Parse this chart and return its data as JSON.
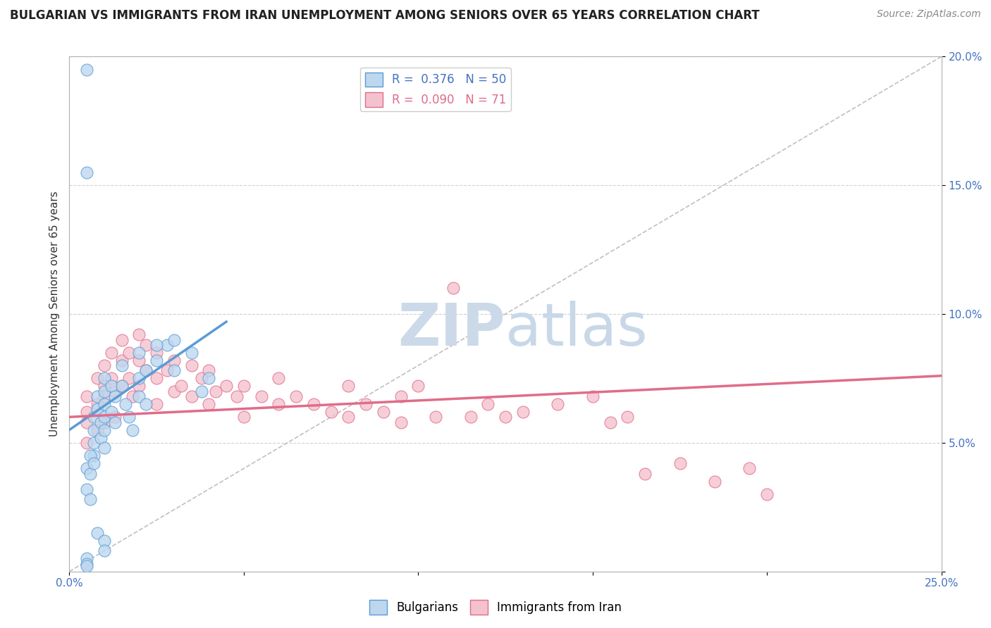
{
  "title": "BULGARIAN VS IMMIGRANTS FROM IRAN UNEMPLOYMENT AMONG SENIORS OVER 65 YEARS CORRELATION CHART",
  "source": "Source: ZipAtlas.com",
  "ylabel": "Unemployment Among Seniors over 65 years",
  "xlim": [
    0.0,
    0.25
  ],
  "ylim": [
    0.0,
    0.2
  ],
  "blue_R": 0.376,
  "blue_N": 50,
  "pink_R": 0.09,
  "pink_N": 71,
  "blue_scatter_x": [
    0.005,
    0.005,
    0.005,
    0.005,
    0.005,
    0.007,
    0.007,
    0.007,
    0.007,
    0.008,
    0.008,
    0.009,
    0.009,
    0.01,
    0.01,
    0.01,
    0.01,
    0.01,
    0.01,
    0.012,
    0.012,
    0.013,
    0.013,
    0.015,
    0.015,
    0.016,
    0.017,
    0.018,
    0.02,
    0.02,
    0.02,
    0.022,
    0.022,
    0.025,
    0.028,
    0.03,
    0.03,
    0.035,
    0.038,
    0.04,
    0.005,
    0.005,
    0.006,
    0.006,
    0.006,
    0.007,
    0.025,
    0.008,
    0.01,
    0.01
  ],
  "blue_scatter_y": [
    0.195,
    0.155,
    0.005,
    0.003,
    0.002,
    0.06,
    0.055,
    0.05,
    0.045,
    0.068,
    0.063,
    0.058,
    0.052,
    0.075,
    0.07,
    0.065,
    0.06,
    0.055,
    0.048,
    0.072,
    0.062,
    0.068,
    0.058,
    0.08,
    0.072,
    0.065,
    0.06,
    0.055,
    0.085,
    0.075,
    0.068,
    0.078,
    0.065,
    0.082,
    0.088,
    0.09,
    0.078,
    0.085,
    0.07,
    0.075,
    0.04,
    0.032,
    0.045,
    0.038,
    0.028,
    0.042,
    0.088,
    0.015,
    0.012,
    0.008
  ],
  "pink_scatter_x": [
    0.005,
    0.005,
    0.005,
    0.005,
    0.008,
    0.008,
    0.008,
    0.01,
    0.01,
    0.01,
    0.01,
    0.012,
    0.012,
    0.013,
    0.013,
    0.015,
    0.015,
    0.015,
    0.017,
    0.017,
    0.018,
    0.02,
    0.02,
    0.02,
    0.022,
    0.022,
    0.025,
    0.025,
    0.025,
    0.028,
    0.03,
    0.03,
    0.032,
    0.035,
    0.035,
    0.038,
    0.04,
    0.04,
    0.042,
    0.045,
    0.048,
    0.05,
    0.05,
    0.055,
    0.06,
    0.06,
    0.065,
    0.07,
    0.075,
    0.08,
    0.08,
    0.085,
    0.09,
    0.095,
    0.095,
    0.1,
    0.105,
    0.11,
    0.115,
    0.12,
    0.125,
    0.13,
    0.14,
    0.15,
    0.155,
    0.16,
    0.165,
    0.175,
    0.185,
    0.195,
    0.2
  ],
  "pink_scatter_y": [
    0.068,
    0.062,
    0.058,
    0.05,
    0.075,
    0.065,
    0.055,
    0.08,
    0.072,
    0.068,
    0.058,
    0.085,
    0.075,
    0.07,
    0.06,
    0.09,
    0.082,
    0.072,
    0.085,
    0.075,
    0.068,
    0.092,
    0.082,
    0.072,
    0.088,
    0.078,
    0.085,
    0.075,
    0.065,
    0.078,
    0.082,
    0.07,
    0.072,
    0.08,
    0.068,
    0.075,
    0.078,
    0.065,
    0.07,
    0.072,
    0.068,
    0.072,
    0.06,
    0.068,
    0.075,
    0.065,
    0.068,
    0.065,
    0.062,
    0.072,
    0.06,
    0.065,
    0.062,
    0.068,
    0.058,
    0.072,
    0.06,
    0.11,
    0.06,
    0.065,
    0.06,
    0.062,
    0.065,
    0.068,
    0.058,
    0.06,
    0.038,
    0.042,
    0.035,
    0.04,
    0.03
  ],
  "blue_line_x": [
    0.0,
    0.045
  ],
  "blue_line_y": [
    0.055,
    0.097
  ],
  "pink_line_x": [
    0.0,
    0.25
  ],
  "pink_line_y": [
    0.06,
    0.076
  ],
  "ref_line_x": [
    0.0,
    0.25
  ],
  "ref_line_y": [
    0.0,
    0.2
  ],
  "blue_color": "#5b9bd5",
  "blue_fill": "#bdd7ee",
  "pink_color": "#e06c8a",
  "pink_fill": "#f4c2ce",
  "ref_line_color": "#b0b0b0",
  "title_fontsize": 12,
  "source_fontsize": 10,
  "axis_label_fontsize": 11,
  "tick_fontsize": 11,
  "legend_fontsize": 12,
  "watermark_color": "#ccd9e8",
  "watermark_fontsize": 60
}
